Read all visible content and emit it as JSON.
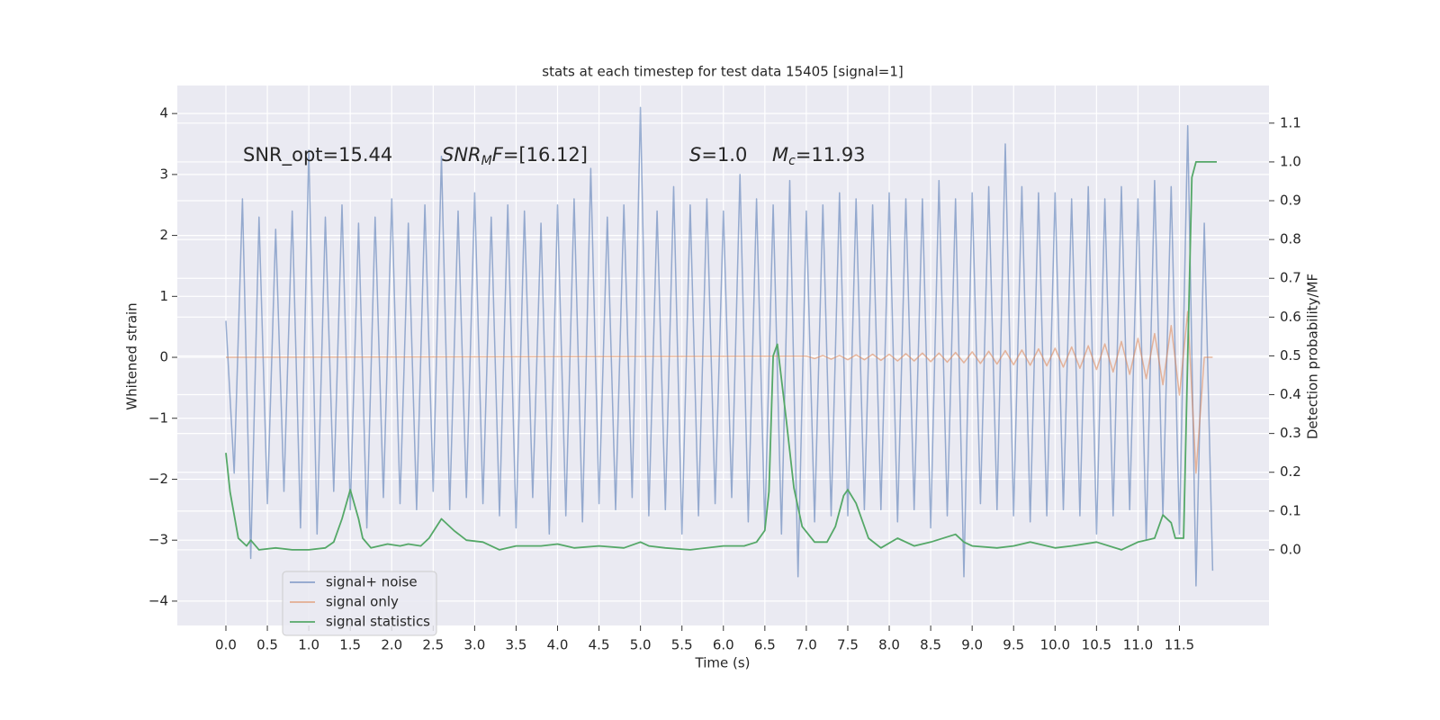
{
  "chart_data": {
    "type": "line",
    "title": "stats at each timestep for test data 15405 [signal=1]",
    "xlabel": "Time (s)",
    "ylabel": "Whitened strain",
    "y2label": "Detection probability/MF",
    "xlim": [
      -0.586,
      12.58
    ],
    "ylim": [
      -4.4,
      4.46
    ],
    "y2lim": [
      -0.195,
      1.197
    ],
    "xticks": [
      {
        "value": 0,
        "label": "0.0"
      },
      0.5,
      {
        "value": 1,
        "label": "1.0"
      },
      1.5,
      {
        "value": 2,
        "label": "2.0"
      },
      2.5,
      {
        "value": 3,
        "label": "3.0"
      },
      3.5,
      {
        "value": 4,
        "label": "4.0"
      },
      4.5,
      {
        "value": 5,
        "label": "5.0"
      },
      5.5,
      {
        "value": 6,
        "label": "6.0"
      },
      6.5,
      {
        "value": 7,
        "label": "7.0"
      },
      7.5,
      {
        "value": 8,
        "label": "8.0"
      },
      8.5,
      {
        "value": 9,
        "label": "9.0"
      },
      9.5,
      {
        "value": 10,
        "label": "10.0"
      },
      10.5,
      {
        "value": 11,
        "label": "11.0"
      },
      11.5
    ],
    "yticks": [
      {
        "value": -4,
        "label": "−4"
      },
      {
        "value": -3,
        "label": "−3"
      },
      {
        "value": -2,
        "label": "−2"
      },
      {
        "value": -1,
        "label": "−1"
      },
      0,
      1,
      2,
      3,
      4
    ],
    "y2ticks": [
      {
        "value": 0,
        "label": "0.0"
      },
      0.1,
      0.2,
      0.3,
      0.4,
      0.5,
      0.6,
      0.7,
      0.8,
      0.9,
      {
        "value": 1,
        "label": "1.0"
      },
      1.1
    ],
    "grid": true,
    "legend": "lower left",
    "annotations": [
      [
        {
          "text": "SNR_opt=15.44"
        }
      ],
      [
        {
          "text": "SNR",
          "italic": true
        },
        {
          "text": "M",
          "italic": true,
          "sub": true
        },
        {
          "text": "F",
          "italic": true
        },
        {
          "text": "=[16.12]"
        }
      ],
      [
        {
          "text": "S",
          "italic": true
        },
        {
          "text": "=1.0"
        }
      ],
      [
        {
          "text": "M",
          "italic": true
        },
        {
          "text": "c",
          "italic": true,
          "sub": true
        },
        {
          "text": "=11.93"
        }
      ]
    ],
    "series": [
      {
        "name": "signal+ noise",
        "color": "#4c72b0",
        "x": [
          0,
          0.1,
          0.2,
          0.3,
          0.4,
          0.5,
          0.6,
          0.7,
          0.8,
          0.9,
          1,
          1.1,
          1.2,
          1.3,
          1.4,
          1.5,
          1.6,
          1.7,
          1.8,
          1.9,
          2,
          2.1,
          2.2,
          2.3,
          2.4,
          2.5,
          2.6,
          2.7,
          2.8,
          2.9,
          3,
          3.1,
          3.2,
          3.3,
          3.4,
          3.5,
          3.6,
          3.7,
          3.8,
          3.9,
          4,
          4.1,
          4.2,
          4.3,
          4.4,
          4.5,
          4.6,
          4.7,
          4.8,
          4.9,
          5,
          5.1,
          5.2,
          5.3,
          5.4,
          5.5,
          5.6,
          5.7,
          5.8,
          5.9,
          6,
          6.1,
          6.2,
          6.3,
          6.4,
          6.5,
          6.6,
          6.7,
          6.8,
          6.9,
          7,
          7.1,
          7.2,
          7.3,
          7.4,
          7.5,
          7.6,
          7.7,
          7.8,
          7.9,
          8,
          8.1,
          8.2,
          8.3,
          8.4,
          8.5,
          8.6,
          8.7,
          8.8,
          8.9,
          9,
          9.1,
          9.2,
          9.3,
          9.4,
          9.5,
          9.6,
          9.7,
          9.8,
          9.9,
          10,
          10.1,
          10.2,
          10.3,
          10.4,
          10.5,
          10.6,
          10.7,
          10.8,
          10.9,
          11,
          11.1,
          11.2,
          11.3,
          11.4,
          11.5,
          11.6,
          11.7,
          11.8,
          11.9
        ],
        "values": [
          0.6,
          -1.9,
          2.6,
          -3.3,
          2.3,
          -2.4,
          2.1,
          -2.2,
          2.4,
          -2.8,
          3.4,
          -2.9,
          2.3,
          -2.2,
          2.5,
          -2.5,
          2.2,
          -2.8,
          2.3,
          -2.3,
          2.6,
          -2.4,
          2.2,
          -2.5,
          2.5,
          -2.2,
          3.3,
          -2.5,
          2.4,
          -2.3,
          2.7,
          -2.4,
          2.3,
          -2.6,
          2.5,
          -2.8,
          2.4,
          -2.3,
          2.2,
          -2.9,
          2.5,
          -2.6,
          2.6,
          -2.7,
          3.1,
          -2.4,
          2.3,
          -2.5,
          2.5,
          -2.3,
          4.1,
          -2.6,
          2.4,
          -2.5,
          2.8,
          -2.9,
          2.5,
          -2.6,
          2.6,
          -2.4,
          2.4,
          -2.3,
          3.0,
          -2.7,
          2.6,
          -2.8,
          2.5,
          -2.9,
          2.9,
          -3.6,
          2.4,
          -2.7,
          2.5,
          -2.6,
          2.7,
          -2.6,
          2.6,
          -2.5,
          2.5,
          -2.5,
          2.7,
          -2.7,
          2.6,
          -2.5,
          2.6,
          -2.8,
          2.9,
          -2.6,
          2.6,
          -3.6,
          2.7,
          -2.4,
          2.8,
          -2.5,
          3.5,
          -2.6,
          2.8,
          -2.7,
          2.7,
          -2.6,
          2.7,
          -2.5,
          2.6,
          -2.6,
          2.8,
          -2.9,
          2.6,
          -2.6,
          2.8,
          -2.5,
          2.6,
          -3.0,
          2.9,
          -2.6,
          2.8,
          -2.9,
          3.8,
          -3.75,
          2.2,
          -3.5
        ]
      },
      {
        "name": "signal only",
        "color": "#dd8452",
        "x": [
          0,
          7,
          7.1,
          7.2,
          7.3,
          7.4,
          7.5,
          7.6,
          7.7,
          7.8,
          7.9,
          8,
          8.1,
          8.2,
          8.3,
          8.4,
          8.5,
          8.6,
          8.7,
          8.8,
          8.9,
          9,
          9.1,
          9.2,
          9.3,
          9.4,
          9.5,
          9.6,
          9.7,
          9.8,
          9.9,
          10,
          10.1,
          10.2,
          10.3,
          10.4,
          10.5,
          10.6,
          10.7,
          10.8,
          10.9,
          11,
          11.1,
          11.2,
          11.3,
          11.4,
          11.5,
          11.6,
          11.7,
          11.8,
          11.9
        ],
        "values": [
          0,
          0.02,
          -0.02,
          0.03,
          -0.03,
          0.03,
          -0.04,
          0.04,
          -0.04,
          0.05,
          -0.05,
          0.05,
          -0.06,
          0.06,
          -0.06,
          0.07,
          -0.07,
          0.07,
          -0.08,
          0.08,
          -0.09,
          0.09,
          -0.1,
          0.1,
          -0.11,
          0.11,
          -0.12,
          0.12,
          -0.13,
          0.14,
          -0.14,
          0.15,
          -0.16,
          0.17,
          -0.18,
          0.19,
          -0.2,
          0.22,
          -0.24,
          0.26,
          -0.28,
          0.31,
          -0.35,
          0.39,
          -0.45,
          0.52,
          -0.62,
          0.75,
          -1.9,
          0,
          0
        ]
      },
      {
        "name": "signal statistics",
        "color": "#55a868",
        "axis": "y2",
        "x": [
          0,
          0.05,
          0.15,
          0.25,
          0.3,
          0.4,
          0.6,
          0.8,
          1,
          1.2,
          1.3,
          1.4,
          1.5,
          1.6,
          1.65,
          1.75,
          1.85,
          1.95,
          2.1,
          2.2,
          2.35,
          2.45,
          2.6,
          2.75,
          2.9,
          3.1,
          3.3,
          3.5,
          3.8,
          4,
          4.2,
          4.5,
          4.8,
          5,
          5.1,
          5.3,
          5.6,
          6,
          6.25,
          6.4,
          6.5,
          6.55,
          6.6,
          6.65,
          6.75,
          6.85,
          6.95,
          7.1,
          7.25,
          7.35,
          7.45,
          7.5,
          7.6,
          7.75,
          7.9,
          8.1,
          8.3,
          8.5,
          8.8,
          8.9,
          9,
          9.3,
          9.5,
          9.7,
          10,
          10.2,
          10.5,
          10.8,
          11,
          11.2,
          11.3,
          11.4,
          11.45,
          11.55,
          11.6,
          11.65,
          11.7,
          11.8,
          11.95
        ],
        "values": [
          0.25,
          0.15,
          0.03,
          0.01,
          0.025,
          0,
          0.005,
          0,
          0,
          0.005,
          0.02,
          0.08,
          0.155,
          0.08,
          0.03,
          0.005,
          0.01,
          0.015,
          0.01,
          0.015,
          0.01,
          0.03,
          0.08,
          0.05,
          0.025,
          0.02,
          0,
          0.01,
          0.01,
          0.015,
          0.005,
          0.01,
          0.005,
          0.02,
          0.01,
          0.005,
          0,
          0.01,
          0.01,
          0.02,
          0.05,
          0.15,
          0.5,
          0.53,
          0.35,
          0.16,
          0.06,
          0.02,
          0.02,
          0.06,
          0.14,
          0.155,
          0.12,
          0.03,
          0.005,
          0.03,
          0.01,
          0.02,
          0.04,
          0.02,
          0.01,
          0.005,
          0.01,
          0.02,
          0.005,
          0.01,
          0.02,
          0,
          0.02,
          0.03,
          0.09,
          0.07,
          0.03,
          0.03,
          0.5,
          0.96,
          1,
          1,
          1
        ]
      }
    ]
  }
}
